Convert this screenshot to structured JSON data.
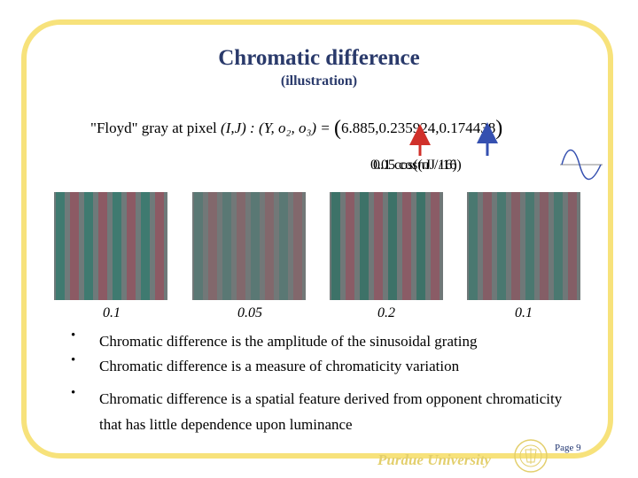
{
  "slide": {
    "title": "Chromatic difference",
    "subtitle": "(illustration)"
  },
  "formula": {
    "prefix": "\"Floyd\" gray at pixel ",
    "pixel": "(I,J) :",
    "vector": "(Y, o₂, o₃) =",
    "value": "6.885,0.235924,0.174438"
  },
  "cos_label": {
    "text_a": "0.05 cos(πJ /16)",
    "text_b": "0.1 cos(πJ /16)"
  },
  "gratings": [
    {
      "amplitude": "0.1"
    },
    {
      "amplitude": "0.05"
    },
    {
      "amplitude": "0.2"
    },
    {
      "amplitude": "0.1"
    }
  ],
  "bullets": [
    "Chromatic difference is the amplitude of the sinusoidal grating",
    "Chromatic difference is a measure of chromaticity variation",
    "Chromatic difference is a spatial feature derived from opponent chromaticity that has little dependence upon luminance"
  ],
  "bullet_symbol": "•",
  "footer": {
    "university": "Purdue University",
    "page": "Page 9"
  },
  "colors": {
    "frame": "#f7e27b",
    "title": "#2a3a6b",
    "arrow_red": "#d0302a",
    "arrow_blue": "#3550b0",
    "footer": "#e3cf6d"
  }
}
